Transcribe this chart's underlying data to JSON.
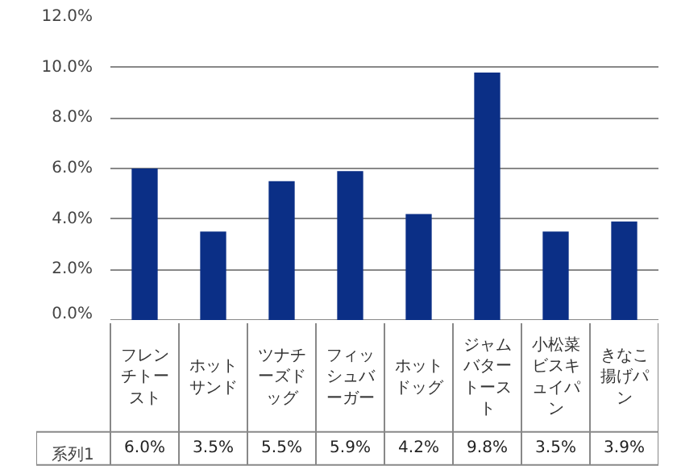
{
  "chart_data": {
    "type": "bar",
    "categories": [
      "フレンチトースト",
      "ホットサンド",
      "ツナチーズドッグ",
      "フィッシュバーガー",
      "ホットドッグ",
      "ジャムバタートースト",
      "小松菜ビスキュイパン",
      "きなこ揚げパン"
    ],
    "series": [
      {
        "name": "系列1",
        "color": "#0b2f86",
        "values": [
          6.0,
          3.5,
          5.5,
          5.9,
          4.2,
          9.8,
          3.5,
          3.9
        ],
        "value_labels": [
          "6.0%",
          "3.5%",
          "5.5%",
          "5.9%",
          "4.2%",
          "9.8%",
          "3.5%",
          "3.9%"
        ]
      }
    ],
    "ylim": [
      0,
      12
    ],
    "yticks": [
      {
        "value": 0,
        "label": "0.0%"
      },
      {
        "value": 2,
        "label": "2.0%"
      },
      {
        "value": 4,
        "label": "4.0%"
      },
      {
        "value": 6,
        "label": "6.0%"
      },
      {
        "value": 8,
        "label": "8.0%"
      },
      {
        "value": 10,
        "label": "10.0%"
      },
      {
        "value": 12,
        "label": "12.0%"
      }
    ],
    "grid": "y",
    "legend": "bottom"
  }
}
